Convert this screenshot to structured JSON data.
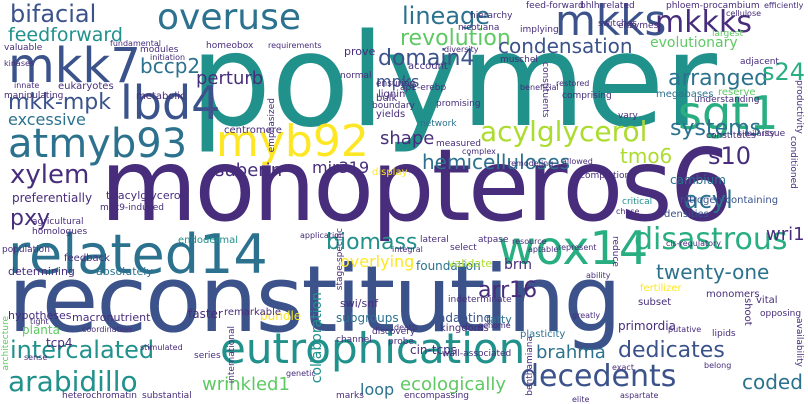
{
  "palette": {
    "dark_purple": "#472d7b",
    "indigo": "#3b528b",
    "blue": "#2c728e",
    "teal": "#21918c",
    "green": "#28ae80",
    "light_green": "#5ec962",
    "yellow_green": "#addc30",
    "yellow": "#fde725",
    "deep_purple": "#440154"
  },
  "words": {
    "polymer": "polymer",
    "monopteros6": "monopteros6",
    "reconstituting": "reconstituting",
    "related14": "related14",
    "eutrophication": "eutrophication",
    "atmyb93": "atmyb93",
    "mkk7": "mkk7",
    "mkks": "mkks",
    "overuse": "overuse",
    "bifacial": "bifacial",
    "lbd4": "lbd4",
    "myb92": "myb92",
    "sgt1": "sgt1",
    "wox14": "wox14",
    "acylglycerol": "acylglycerol",
    "disastrous": "disastrous",
    "arabidillo": "arabidillo",
    "decedents": "decedents",
    "mkkks": "mkkks",
    "feedforward": "feedforward",
    "bccp2": "bccp2",
    "lineage": "lineage",
    "revolution": "revolution",
    "domain4": "domain4",
    "condensation": "condensation",
    "evolutionary": "evolutionary",
    "arranged": "arranged",
    "s24": "s24",
    "mkk_mpk": "mkk-mpk",
    "perturb": "perturb",
    "mpks": "mpks",
    "excessive": "excessive",
    "shape": "shape",
    "systems": "systems",
    "xylem": "xylem",
    "suberin": "suberin",
    "hemicelluloses": "hemicelluloses",
    "tmo6": "tmo6",
    "s10": "s10",
    "pxy": "pxy",
    "acyl": "acyl",
    "biomass": "biomass",
    "wri1": "wri1",
    "intercalated": "intercalated",
    "arr16": "arr16",
    "twenty_one": "twenty-one",
    "brahma": "brahma",
    "dedicates": "dedicates",
    "coded": "coded",
    "wrinkled1": "wrinkled1",
    "ecologically": "ecologically",
    "overlying": "overlying",
    "brm": "brm",
    "collaboration": "collaboration",
    "loop": "loop",
    "mir319": "mir319",
    "cin_tcps": "cin-tcps",
    "tcp4": "tcp4",
    "planta": "planta",
    "endodermal": "endodermal",
    "foundation": "foundation",
    "validate": "validate",
    "fatty": "fatty",
    "adapting": "adapting",
    "subgroups": "subgroups",
    "swi_snf": "swi/snf",
    "bundle": "bundle",
    "faster": "faster",
    "remarkable": "remarkable",
    "hypotheses": "hypotheses",
    "macronutrient": "macronutrient",
    "determining": "determining",
    "absolutely": "absolutely",
    "feedback": "feedback",
    "homologues": "homologues",
    "agricultural": "agricultural",
    "preferentially": "preferentially",
    "triacylglycerol": "triacylglycerol",
    "mkk9_induced": "mkk9-induced",
    "centromere": "centromere",
    "emphasized": "emphasized",
    "metabolic": "metabolic",
    "eukaryotes": "eukaryotes",
    "prove": "prove",
    "lignin": "lignin",
    "account": "account",
    "yields": "yields",
    "bulk": "bulk",
    "boundary": "boundary",
    "network": "network",
    "measured": "measured",
    "display": "display",
    "cambium": "cambium",
    "critical": "critical",
    "densities": "densities",
    "nitrogen_containing": "nitrogen-containing",
    "fertilizer": "fertilizer",
    "subset": "subset",
    "monomers": "monomers",
    "vital": "vital",
    "shoot": "shoot",
    "primordia": "primordia",
    "plasticity": "plasticity",
    "kingdoms": "kingdoms",
    "channel": "channel",
    "discovery": "discovery",
    "probe": "probe",
    "marks": "marks",
    "encompassing": "encompassing",
    "heterochromatin": "heterochromatin",
    "substantial": "substantial",
    "stage_specific": "stage-specific",
    "international": "international",
    "series": "series",
    "indeterminate": "indeterminate",
    "lateral": "lateral",
    "architecture": "architecture",
    "atpase": "atpase",
    "select": "select",
    "completion": "completion",
    "constitutes": "constitutes",
    "issue": "issue",
    "reduce": "reduce",
    "conditioned": "conditioned",
    "understanding": "understanding",
    "reserve": "reserve",
    "megabases": "megabases",
    "comprising": "comprising",
    "vary": "vary",
    "promising": "promising",
    "constituents": "constituents",
    "feed_forward": "feed-forward",
    "bhlh_related": "bhlh-related",
    "phloem_procambium": "phloem-procambium",
    "hierarchy": "hierarchy",
    "enzymes": "enzymes",
    "nicotiana": "nicotiana",
    "switches": "switches",
    "implying": "implying",
    "largest": "largest",
    "adjacent": "adjacent",
    "normal": "normal",
    "ensuring": "ensuring",
    "ap2_erebp": "ap2-erebp",
    "muschel": "muschel",
    "homeobox": "homeobox",
    "modules": "modules",
    "valuable": "valuable",
    "manipulating": "manipulating",
    "productivity": "productivity",
    "opposing": "opposing",
    "availability": "availability",
    "benthamiana": "benthamiana",
    "lipids": "lipids",
    "wall_associated": "wall-associated",
    "population": "population",
    "diversity": "diversity",
    "remodeling": "remodeling",
    "fundamental": "fundamental",
    "initiation": "initiation",
    "kinases": "kinases",
    "innate": "innate",
    "requirements": "requirements",
    "beneficial": "beneficial",
    "restored": "restored",
    "similarity": "similarity",
    "efficiently": "efficiently",
    "cellulose": "cellulose",
    "allowed": "allowed",
    "complex": "complex",
    "application": "application",
    "integral": "integral",
    "resource": "resource",
    "stimulated": "stimulated",
    "death": "death",
    "genome": "genome",
    "greatly": "greatly",
    "cis_regulatory": "cis-regulatory",
    "belong": "belong",
    "tight": "tight",
    "coordination": "coordination",
    "sense": "sense",
    "genetic": "genetic",
    "chase": "chase",
    "represent": "represent",
    "ability": "ability",
    "exact": "exact",
    "putative": "putative",
    "aptable": "aptable",
    "elite": "elite",
    "aspartate": "aspartate"
  }
}
